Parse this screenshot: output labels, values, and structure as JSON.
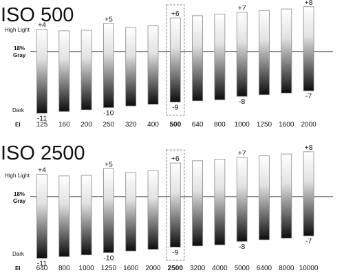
{
  "chart_data": [
    {
      "type": "bar",
      "title": "ISO 500",
      "xlabel": "EI",
      "y_top_label": "High Light",
      "y_mid_label": [
        "18%",
        "Gray"
      ],
      "y_bottom_label": "Dark",
      "ylim": [
        -11.5,
        8.5
      ],
      "categories": [
        "125",
        "160",
        "200",
        "250",
        "320",
        "400",
        "500",
        "640",
        "800",
        "1000",
        "1250",
        "1600",
        "2000"
      ],
      "highlighted_category": "500",
      "highlight_stops": [
        4,
        3.7,
        3.8,
        5,
        4.3,
        4.6,
        6,
        6.4,
        6.7,
        7,
        7.3,
        7.6,
        8
      ],
      "shadow_stops": [
        -11,
        -10.7,
        -10.4,
        -10,
        -9.7,
        -9.4,
        -9,
        -8.8,
        -8.6,
        -8,
        -7.7,
        -7.4,
        -7
      ],
      "stop_labels": [
        {
          "category": "125",
          "end": "top",
          "text": "+4"
        },
        {
          "category": "125",
          "end": "bottom",
          "text": "-11"
        },
        {
          "category": "250",
          "end": "top",
          "text": "+5"
        },
        {
          "category": "250",
          "end": "bottom",
          "text": "-10"
        },
        {
          "category": "500",
          "end": "top",
          "text": "+6"
        },
        {
          "category": "500",
          "end": "bottom",
          "text": "-9"
        },
        {
          "category": "1000",
          "end": "top",
          "text": "+7"
        },
        {
          "category": "1000",
          "end": "bottom",
          "text": "-8"
        },
        {
          "category": "2000",
          "end": "top",
          "text": "+8"
        },
        {
          "category": "2000",
          "end": "bottom",
          "text": "-7"
        }
      ],
      "grid": false,
      "legend": "none"
    },
    {
      "type": "bar",
      "title": "ISO 2500",
      "xlabel": "EI",
      "y_top_label": "High Light",
      "y_mid_label": [
        "18%",
        "Gray"
      ],
      "y_bottom_label": "Dark",
      "ylim": [
        -11.5,
        8.5
      ],
      "categories": [
        "640",
        "800",
        "1000",
        "1250",
        "1600",
        "2000",
        "2500",
        "3200",
        "4000",
        "5000",
        "6400",
        "8000",
        "10000"
      ],
      "highlighted_category": "2500",
      "highlight_stops": [
        4,
        3.7,
        3.8,
        5,
        4.3,
        4.6,
        6,
        6.4,
        6.7,
        7,
        7.3,
        7.6,
        8
      ],
      "shadow_stops": [
        -11,
        -10.7,
        -10.4,
        -10,
        -9.7,
        -9.4,
        -9,
        -8.8,
        -8.6,
        -8,
        -7.7,
        -7.4,
        -7
      ],
      "stop_labels": [
        {
          "category": "640",
          "end": "top",
          "text": "+4"
        },
        {
          "category": "640",
          "end": "bottom",
          "text": "-11"
        },
        {
          "category": "1250",
          "end": "top",
          "text": "+5"
        },
        {
          "category": "1250",
          "end": "bottom",
          "text": "-10"
        },
        {
          "category": "2500",
          "end": "top",
          "text": "+6"
        },
        {
          "category": "2500",
          "end": "bottom",
          "text": "-9"
        },
        {
          "category": "5000",
          "end": "top",
          "text": "+7"
        },
        {
          "category": "5000",
          "end": "bottom",
          "text": "-8"
        },
        {
          "category": "10000",
          "end": "top",
          "text": "+8"
        },
        {
          "category": "10000",
          "end": "bottom",
          "text": "-7"
        }
      ],
      "grid": false,
      "legend": "none"
    }
  ]
}
